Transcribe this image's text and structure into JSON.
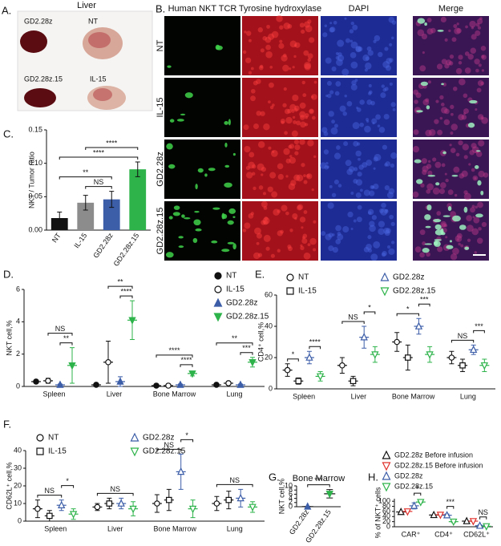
{
  "panel_labels": [
    "A.",
    "B.",
    "C.",
    "D.",
    "E.",
    "F.",
    "G.",
    "H."
  ],
  "panel_a": {
    "title": "Liver",
    "labels": [
      "GD2.28z",
      "NT",
      "GD2.28z.15",
      "IL-15"
    ]
  },
  "panel_b": {
    "columns": [
      "Human NKT TCR",
      "Tyrosine hydroxylase",
      "DAPI",
      "Merge"
    ],
    "rows": [
      "NT",
      "IL-15",
      "GD2.28z",
      "GD2.28z.15"
    ]
  },
  "chart_data": [
    {
      "type": "bar",
      "ylabel": "NKT / Tumor ratio",
      "categories": [
        "NT",
        "IL-15",
        "GD2.28z",
        "GD2.28z.15"
      ],
      "values": [
        0.018,
        0.041,
        0.046,
        0.091
      ],
      "errors": [
        0.009,
        0.011,
        0.012,
        0.011
      ],
      "colors": [
        "#111111",
        "#8c8c8c",
        "#3c5da8",
        "#2db34a"
      ],
      "ylim": [
        0,
        0.15
      ],
      "yticks": [
        {
          "value": 0,
          "label": "0.00"
        },
        {
          "value": 0.05,
          "label": "0.05"
        },
        {
          "value": 0.1,
          "label": "0.10"
        },
        {
          "value": 0.15,
          "label": "0.15"
        }
      ],
      "comparisons": [
        {
          "label": "NS",
          "between": [
            1,
            2
          ]
        },
        {
          "label": "**",
          "between": [
            0,
            2
          ]
        },
        {
          "label": "****",
          "between": [
            0,
            3
          ]
        },
        {
          "label": "****",
          "between": [
            1,
            3
          ]
        }
      ]
    },
    {
      "type": "dot",
      "ylabel": "NKT cell,%",
      "categories": [
        "Spleen",
        "Liver",
        "Bone Marrow",
        "Lung"
      ],
      "ylim": [
        0,
        6
      ],
      "yticks": [
        0,
        2,
        4,
        6
      ],
      "legend": "top-right",
      "series": [
        {
          "name": "NT",
          "color": "#111111",
          "marker": "circle",
          "filled": true,
          "values": [
            0.3,
            0.1,
            0.05,
            0.1
          ],
          "errors": [
            0.1,
            0.05,
            0.03,
            0.05
          ]
        },
        {
          "name": "IL-15",
          "color": "#111111",
          "marker": "circle",
          "filled": false,
          "values": [
            0.35,
            1.5,
            0.05,
            0.2
          ],
          "errors": [
            0.15,
            1.3,
            0.03,
            0.1
          ]
        },
        {
          "name": "GD2.28z",
          "color": "#3c5da8",
          "marker": "triangle",
          "filled": true,
          "values": [
            0.1,
            0.3,
            0.1,
            0.1
          ],
          "errors": [
            0.05,
            0.3,
            0.05,
            0.05
          ]
        },
        {
          "name": "GD2.28z.15",
          "color": "#2db34a",
          "marker": "triangle-down",
          "filled": true,
          "values": [
            1.3,
            4.1,
            0.8,
            1.5
          ],
          "errors": [
            1.1,
            1.2,
            0.15,
            0.3
          ]
        }
      ],
      "comparisons": [
        {
          "label": "**",
          "category": 0,
          "between": [
            2,
            3
          ]
        },
        {
          "label": "NS",
          "category": 0,
          "between": [
            1,
            3
          ]
        },
        {
          "label": "****",
          "category": 1,
          "between": [
            2,
            3
          ]
        },
        {
          "label": "**",
          "category": 1,
          "between": [
            1,
            3
          ]
        },
        {
          "label": "****",
          "category": 2,
          "between": [
            2,
            3
          ]
        },
        {
          "label": "****",
          "category": 2,
          "between": [
            0,
            3
          ]
        },
        {
          "label": "***",
          "category": 3,
          "between": [
            2,
            3
          ]
        },
        {
          "label": "**",
          "category": 3,
          "between": [
            0,
            3
          ]
        }
      ]
    },
    {
      "type": "dot",
      "ylabel": "CD4⁺ cell,%",
      "categories": [
        "Spleen",
        "Liver",
        "Bone Marrow",
        "Lung"
      ],
      "ylim": [
        0,
        60
      ],
      "yticks": [
        0,
        20,
        40,
        60
      ],
      "legend": "top",
      "series": [
        {
          "name": "NT",
          "color": "#111111",
          "marker": "circle",
          "filled": false,
          "values": [
            12,
            15,
            30,
            20
          ],
          "errors": [
            4,
            5,
            6,
            4
          ]
        },
        {
          "name": "IL-15",
          "color": "#111111",
          "marker": "square",
          "filled": false,
          "values": [
            5,
            5,
            20,
            15
          ],
          "errors": [
            2,
            3,
            8,
            4
          ]
        },
        {
          "name": "GD2.28z",
          "color": "#3c5da8",
          "marker": "triangle",
          "filled": false,
          "values": [
            20,
            33,
            40,
            25
          ],
          "errors": [
            4,
            7,
            5,
            3
          ]
        },
        {
          "name": "GD2.28z.15",
          "color": "#2db34a",
          "marker": "triangle-down",
          "filled": false,
          "values": [
            8,
            22,
            22,
            15
          ],
          "errors": [
            3,
            5,
            5,
            4
          ]
        }
      ],
      "comparisons": [
        {
          "label": "*",
          "category": 0,
          "between": [
            0,
            1
          ]
        },
        {
          "label": "****",
          "category": 0,
          "between": [
            2,
            3
          ]
        },
        {
          "label": "NS",
          "category": 1,
          "between": [
            0,
            2
          ]
        },
        {
          "label": "*",
          "category": 1,
          "between": [
            2,
            3
          ]
        },
        {
          "label": "*",
          "category": 2,
          "between": [
            0,
            2
          ]
        },
        {
          "label": "***",
          "category": 2,
          "between": [
            2,
            3
          ]
        },
        {
          "label": "NS",
          "category": 3,
          "between": [
            0,
            2
          ]
        },
        {
          "label": "***",
          "category": 3,
          "between": [
            2,
            3
          ]
        }
      ]
    },
    {
      "type": "dot",
      "ylabel": "CD62L⁺ cell,%",
      "categories": [
        "Spleen",
        "Liver",
        "Bone Marrow",
        "Lung"
      ],
      "ylim": [
        0,
        40
      ],
      "yticks": [
        0,
        10,
        20,
        30,
        40
      ],
      "legend": "top",
      "series": [
        {
          "name": "NT",
          "color": "#111111",
          "marker": "circle",
          "filled": false,
          "values": [
            7,
            8,
            10,
            10
          ],
          "errors": [
            5,
            2,
            5,
            4
          ]
        },
        {
          "name": "IL-15",
          "color": "#111111",
          "marker": "square",
          "filled": false,
          "values": [
            3,
            10,
            12,
            12
          ],
          "errors": [
            3,
            3,
            6,
            5
          ]
        },
        {
          "name": "GD2.28z",
          "color": "#3c5da8",
          "marker": "triangle",
          "filled": false,
          "values": [
            9,
            10,
            28,
            13
          ],
          "errors": [
            3,
            3,
            10,
            5
          ]
        },
        {
          "name": "GD2.28z.15",
          "color": "#2db34a",
          "marker": "triangle-down",
          "filled": false,
          "values": [
            4,
            7,
            7,
            8
          ],
          "errors": [
            3,
            4,
            5,
            3
          ]
        }
      ],
      "comparisons": [
        {
          "label": "NS",
          "category": 0,
          "between": [
            0,
            2
          ]
        },
        {
          "label": "*",
          "category": 0,
          "between": [
            2,
            3
          ]
        },
        {
          "label": "NS",
          "category": 1,
          "between": [
            0,
            3
          ]
        },
        {
          "label": "NS",
          "category": 2,
          "between": [
            0,
            2
          ]
        },
        {
          "label": "*",
          "category": 2,
          "between": [
            2,
            3
          ]
        },
        {
          "label": "NS",
          "category": 3,
          "between": [
            0,
            3
          ]
        }
      ]
    },
    {
      "type": "dot",
      "title": "Bone Marrow",
      "ylabel": "NKT cell,%",
      "categories": [
        "GD2.28z",
        "GD2.28z.15"
      ],
      "values": [
        0.05,
        6.2
      ],
      "errors": [
        0.05,
        2
      ],
      "colors": [
        "#3c5da8",
        "#2db34a"
      ],
      "markers": [
        "triangle",
        "triangle-down"
      ],
      "filled": true,
      "ylim": [
        0,
        10
      ],
      "yticks": [
        0,
        2,
        4,
        6,
        8,
        10
      ],
      "comparisons": [
        {
          "label": "***",
          "between": [
            0,
            1
          ]
        }
      ]
    },
    {
      "type": "dot",
      "ylabel": "% of NKT⁺ cells",
      "categories": [
        "CAR⁺",
        "CD4⁺",
        "CD62L⁺"
      ],
      "ylim": [
        0,
        110
      ],
      "yticks": [
        0,
        20,
        40,
        60,
        80,
        100
      ],
      "legend": "top",
      "series": [
        {
          "name": "GD2.28z Before infusion",
          "color": "#111111",
          "marker": "triangle",
          "filled": false,
          "values": [
            58,
            46,
            22
          ]
        },
        {
          "name": "GD2.28z.15 Before infusion",
          "color": "#e0302b",
          "marker": "triangle-down",
          "filled": false,
          "values": [
            60,
            47,
            22
          ]
        },
        {
          "name": "GD2.28z",
          "color": "#3c5da8",
          "marker": "triangle",
          "filled": false,
          "values": [
            82,
            45,
            4
          ],
          "errors": [
            12,
            5,
            3
          ]
        },
        {
          "name": "GD2.28z.15",
          "color": "#2db34a",
          "marker": "triangle-down",
          "filled": false,
          "values": [
            97,
            20,
            2
          ],
          "errors": [
            3,
            4,
            2
          ]
        }
      ],
      "comparisons": [
        {
          "label": "*",
          "category": 0,
          "between": [
            2,
            3
          ]
        },
        {
          "label": "***",
          "category": 1,
          "between": [
            2,
            3
          ]
        },
        {
          "label": "NS",
          "category": 2,
          "between": [
            2,
            3
          ]
        }
      ]
    }
  ]
}
